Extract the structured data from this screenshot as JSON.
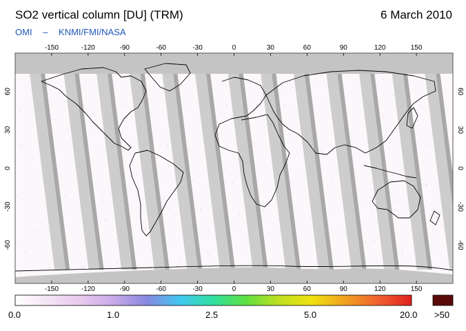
{
  "header": {
    "title": "SO2 vertical column [DU] (TRM)",
    "date": "6 March 2010",
    "credit_left": "OMI",
    "credit_sep": "–",
    "credit_right": "KNMI/FMI/NASA"
  },
  "map": {
    "lon_ticks": [
      "-150",
      "-120",
      "-90",
      "-60",
      "-30",
      "0",
      "30",
      "60",
      "90",
      "120",
      "150"
    ],
    "lat_ticks": [
      "60",
      "30",
      "0",
      "-30",
      "-60"
    ],
    "swath_color": "#c8c8c8",
    "overlap_color": "#a8a8a8",
    "polar_no_data_color": "#c4c4c4",
    "coastline_color": "#000000"
  },
  "colorbar": {
    "labels": [
      "0.0",
      "1.0",
      "2.5",
      "5.0",
      "20.0"
    ],
    "overflow_label": ">50",
    "colors": [
      "#ffffff",
      "#f4e4f4",
      "#e8c8ec",
      "#c8a8e8",
      "#8888e0",
      "#40c8f0",
      "#30e0a0",
      "#60e040",
      "#c0e020",
      "#f0e010",
      "#f0a020",
      "#f06030",
      "#e02020"
    ],
    "overflow_color": "#5a0a0a"
  }
}
